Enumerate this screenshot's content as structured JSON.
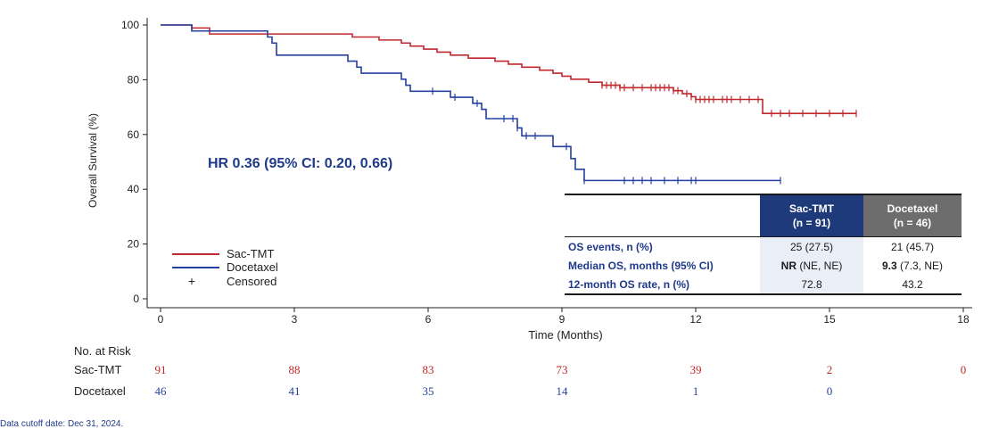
{
  "colors": {
    "sac": "#c0282d",
    "doc": "#2540a0",
    "axis": "#222222",
    "hr": "#1f3a8a"
  },
  "chart_data": {
    "type": "line",
    "subtype": "kaplan-meier",
    "ylabel": "Overall Survival (%)",
    "xlabel": "Time (Months)",
    "xlim": [
      0,
      18
    ],
    "ylim": [
      0,
      100
    ],
    "xticks": [
      0,
      3,
      6,
      9,
      12,
      15,
      18
    ],
    "yticks": [
      0,
      20,
      40,
      60,
      80,
      100
    ],
    "annotation": "HR 0.36 (95% CI: 0.20, 0.66)",
    "legend": [
      "Sac-TMT",
      "Docetaxel",
      "Censored"
    ],
    "censored_symbol": "+",
    "series": [
      {
        "name": "Sac-TMT",
        "color": "#c0282d",
        "steps": [
          [
            0,
            100
          ],
          [
            0.7,
            98.9
          ],
          [
            1.1,
            96.7
          ],
          [
            2.3,
            96.7
          ],
          [
            2.4,
            96.7
          ],
          [
            4.3,
            95.6
          ],
          [
            4.9,
            94.5
          ],
          [
            5.4,
            93.4
          ],
          [
            5.6,
            92.3
          ],
          [
            5.9,
            91.2
          ],
          [
            6.2,
            90.1
          ],
          [
            6.5,
            89.0
          ],
          [
            6.9,
            87.9
          ],
          [
            7.5,
            86.8
          ],
          [
            7.8,
            85.7
          ],
          [
            8.1,
            84.6
          ],
          [
            8.5,
            83.5
          ],
          [
            8.8,
            82.4
          ],
          [
            9.0,
            81.3
          ],
          [
            9.2,
            80.2
          ],
          [
            9.6,
            79.1
          ],
          [
            9.9,
            78.0
          ],
          [
            10.3,
            77.1
          ],
          [
            11.5,
            76.0
          ],
          [
            11.7,
            74.9
          ],
          [
            11.9,
            73.8
          ],
          [
            12.0,
            72.8
          ],
          [
            13.1,
            72.8
          ],
          [
            13.5,
            67.7
          ],
          [
            15.6,
            67.7
          ]
        ],
        "censored": [
          9.9,
          10.0,
          10.1,
          10.2,
          10.3,
          10.4,
          10.6,
          10.8,
          11.0,
          11.1,
          11.2,
          11.3,
          11.4,
          11.5,
          11.6,
          11.8,
          11.9,
          12.0,
          12.1,
          12.2,
          12.3,
          12.4,
          12.6,
          12.7,
          12.8,
          13.0,
          13.2,
          13.4,
          13.7,
          13.9,
          14.1,
          14.4,
          14.7,
          15.0,
          15.3,
          15.6
        ]
      },
      {
        "name": "Docetaxel",
        "color": "#2540a0",
        "steps": [
          [
            0,
            100
          ],
          [
            0.7,
            97.8
          ],
          [
            2.3,
            97.8
          ],
          [
            2.4,
            95.6
          ],
          [
            2.5,
            93.4
          ],
          [
            2.6,
            89.0
          ],
          [
            4.2,
            86.8
          ],
          [
            4.4,
            84.6
          ],
          [
            4.5,
            82.4
          ],
          [
            5.4,
            80.2
          ],
          [
            5.5,
            78.0
          ],
          [
            5.6,
            75.8
          ],
          [
            6.5,
            73.6
          ],
          [
            7.0,
            71.4
          ],
          [
            7.2,
            69.2
          ],
          [
            7.3,
            65.8
          ],
          [
            8.0,
            62.4
          ],
          [
            8.1,
            59.5
          ],
          [
            8.8,
            55.6
          ],
          [
            9.2,
            51.2
          ],
          [
            9.3,
            47.3
          ],
          [
            9.5,
            43.2
          ],
          [
            13.9,
            43.2
          ]
        ],
        "censored": [
          6.1,
          6.6,
          7.1,
          7.7,
          7.9,
          8.0,
          8.2,
          8.4,
          9.1,
          9.5,
          10.4,
          10.6,
          10.8,
          11.0,
          11.3,
          11.6,
          11.9,
          12.0,
          13.9
        ]
      }
    ],
    "risk_table": {
      "title": "No. at Risk",
      "times": [
        0,
        3,
        6,
        9,
        12,
        15,
        18
      ],
      "rows": [
        {
          "label": "Sac-TMT",
          "values": [
            "91",
            "88",
            "83",
            "73",
            "39",
            "2",
            "0"
          ]
        },
        {
          "label": "Docetaxel",
          "values": [
            "46",
            "41",
            "35",
            "14",
            "1",
            "0",
            ""
          ]
        }
      ]
    }
  },
  "stats_table": {
    "col_sac": [
      "Sac-TMT",
      "(n = 91)"
    ],
    "col_doc": [
      "Docetaxel",
      "(n = 46)"
    ],
    "rows": [
      {
        "label": "OS events, n (%)",
        "sac_bold": "",
        "sac": "25 (27.5)",
        "doc_bold": "",
        "doc": "21 (45.7)"
      },
      {
        "label": "Median OS, months (95% CI)",
        "sac_bold": "NR",
        "sac": " (NE, NE)",
        "doc_bold": "9.3",
        "doc": " (7.3, NE)"
      },
      {
        "label": "12-month OS rate, n (%)",
        "sac_bold": "",
        "sac": "72.8",
        "doc_bold": "",
        "doc": "43.2"
      }
    ]
  },
  "footer": {
    "cutoff": "Data cutoff date: Dec 31, 2024."
  }
}
